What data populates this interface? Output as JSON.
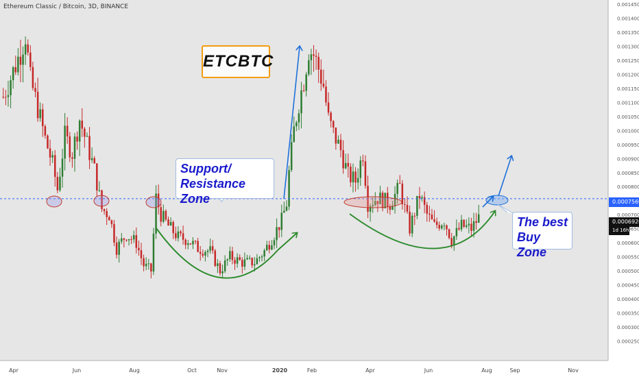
{
  "header": {
    "symbol_line": "Ethereum Classic / Bitcoin, 3D, BINANCE"
  },
  "title_box": {
    "text": "ETCBTC"
  },
  "annotations": {
    "support": [
      "Support/",
      "Resistance Zone"
    ],
    "buy_zone": [
      "The best",
      "Buy Zone"
    ]
  },
  "price_tags": {
    "level": "0.0007569",
    "last": "0.0006920",
    "countdown": "1d 16h"
  },
  "colors": {
    "background": "#e6e6e6",
    "up": "#2e7d32",
    "down": "#c62828",
    "level_line": "#2962ff",
    "arrow": "#1e6fd9",
    "curve": "#2e8b2e",
    "title_border": "#f39c12",
    "annotation_text": "#1a1acc"
  },
  "chart_data": {
    "type": "candlestick",
    "title": "Ethereum Classic / Bitcoin, 3D, BINANCE",
    "x_tick_labels": [
      "Apr",
      "Jun",
      "Aug",
      "Oct",
      "Nov",
      "2020",
      "Feb",
      "Apr",
      "Jun",
      "Aug",
      "Sep",
      "Nov"
    ],
    "y_tick_labels": [
      "0.0014500",
      "0.0014000",
      "0.0013500",
      "0.0013000",
      "0.0012500",
      "0.0012000",
      "0.0011500",
      "0.0011000",
      "0.0010500",
      "0.0010000",
      "0.0009500",
      "0.0009000",
      "0.0008500",
      "0.0008000",
      "0.0007500",
      "0.0007000",
      "0.0006500",
      "0.0006000",
      "0.0005500",
      "0.0005000",
      "0.0004500",
      "0.0004000",
      "0.0003500",
      "0.0003000",
      "0.0002500"
    ],
    "ylim": [
      0.0002,
      0.00145
    ],
    "support_resistance_level": 0.0007569,
    "last_price": 0.000692,
    "series": [
      {
        "name": "",
        "anchors": [
          [
            0,
            0.00112
          ],
          [
            4,
            0.00121
          ],
          [
            7,
            0.00128
          ],
          [
            9,
            0.00134
          ],
          [
            11,
            0.00118
          ],
          [
            14,
            0.00108
          ],
          [
            17,
            0.00097
          ],
          [
            20,
            0.00088
          ],
          [
            22,
            0.00079
          ],
          [
            25,
            0.00098
          ],
          [
            28,
            0.00092
          ],
          [
            31,
            0.00104
          ],
          [
            34,
            0.00095
          ],
          [
            37,
            0.00086
          ],
          [
            40,
            0.00072
          ],
          [
            43,
            0.0007
          ],
          [
            46,
            0.00058
          ],
          [
            50,
            0.00063
          ],
          [
            54,
            0.0006
          ],
          [
            57,
            0.00052
          ],
          [
            60,
            0.0005
          ],
          [
            62,
            0.00076
          ],
          [
            64,
            0.0007
          ],
          [
            67,
            0.00066
          ],
          [
            71,
            0.00062
          ],
          [
            75,
            0.00061
          ],
          [
            79,
            0.00058
          ],
          [
            84,
            0.00057
          ],
          [
            88,
            0.0005
          ],
          [
            92,
            0.00055
          ],
          [
            97,
            0.00053
          ],
          [
            102,
            0.00053
          ],
          [
            106,
            0.00057
          ],
          [
            110,
            0.00063
          ],
          [
            113,
            0.00068
          ],
          [
            115,
            0.00074
          ],
          [
            116,
            0.00085
          ],
          [
            118,
            0.001
          ],
          [
            120,
            0.0011
          ],
          [
            122,
            0.00118
          ],
          [
            124,
            0.00129
          ],
          [
            126,
            0.00127
          ],
          [
            128,
            0.00122
          ],
          [
            130,
            0.00116
          ],
          [
            132,
            0.00104
          ],
          [
            134,
            0.00099
          ],
          [
            137,
            0.00093
          ],
          [
            140,
            0.00084
          ],
          [
            143,
            0.00082
          ],
          [
            146,
            0.00092
          ],
          [
            148,
            0.00074
          ],
          [
            152,
            0.00076
          ],
          [
            157,
            0.00074
          ],
          [
            161,
            0.0008
          ],
          [
            163,
            0.00072
          ],
          [
            165,
            0.00065
          ],
          [
            169,
            0.00077
          ],
          [
            172,
            0.0007
          ],
          [
            175,
            0.00066
          ],
          [
            179,
            0.00068
          ],
          [
            182,
            0.00061
          ],
          [
            186,
            0.00066
          ],
          [
            190,
            0.00065
          ],
          [
            193,
            0.00069
          ]
        ]
      }
    ]
  }
}
